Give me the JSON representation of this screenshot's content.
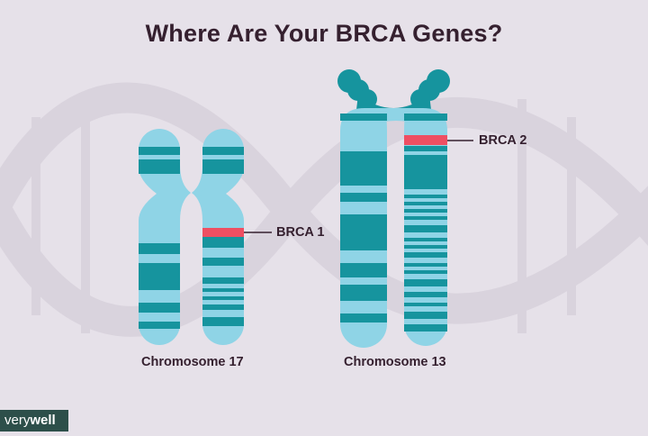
{
  "title": "Where Are Your BRCA Genes?",
  "chromosomes": [
    {
      "label": "Chromosome 17",
      "gene": "BRCA 1"
    },
    {
      "label": "Chromosome 13",
      "gene": "BRCA 2"
    }
  ],
  "logo": {
    "part1": "very",
    "part2": "well"
  },
  "colors": {
    "background": "#e6e1e9",
    "light_band": "#8fd4e6",
    "dark_band": "#16949e",
    "gene_highlight": "#ee4f62",
    "text": "#35202f",
    "dna_watermark": "#d9d3dd"
  }
}
